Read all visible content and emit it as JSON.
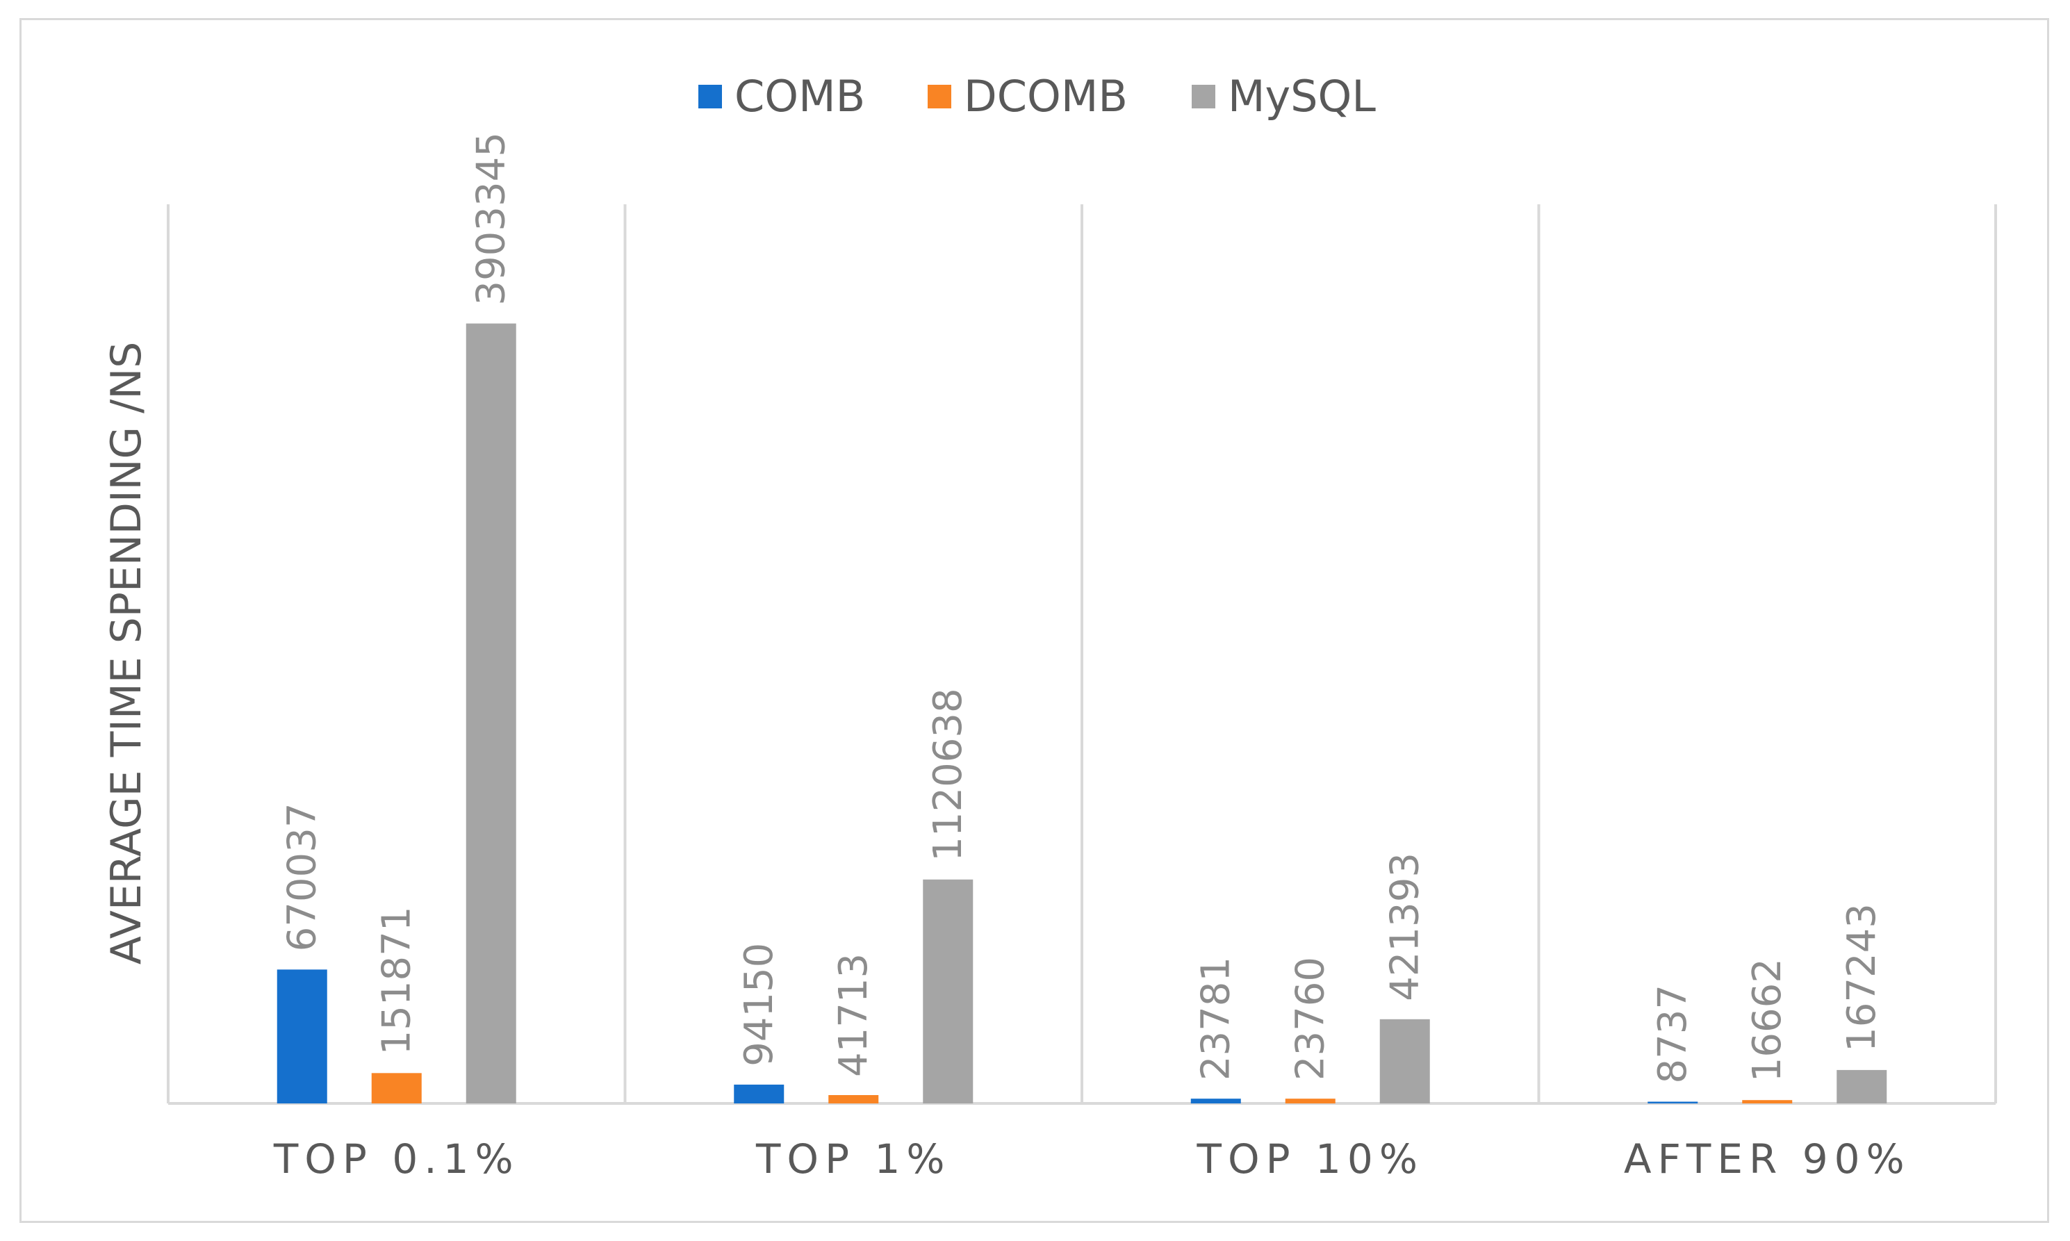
{
  "chart_data": {
    "type": "bar",
    "title": "",
    "xlabel": "",
    "ylabel": "AVERAGE TIME SPENDING /NS",
    "categories": [
      "TOP 0.1%",
      "TOP 1%",
      "TOP 10%",
      "AFTER 90%"
    ],
    "series": [
      {
        "name": "COMB",
        "color": "#1570cd",
        "values": [
          670037,
          94150,
          23781,
          8737
        ]
      },
      {
        "name": "DCOMB",
        "color": "#f98424",
        "values": [
          151871,
          41713,
          23760,
          16662
        ]
      },
      {
        "name": "MySQL",
        "color": "#a5a5a5",
        "values": [
          3903345,
          1120638,
          421393,
          167243
        ]
      }
    ],
    "ylim": [
      0,
      4500000
    ],
    "grid": false,
    "category_dividers": true,
    "legend_position": "top-center",
    "data_labels": true
  }
}
